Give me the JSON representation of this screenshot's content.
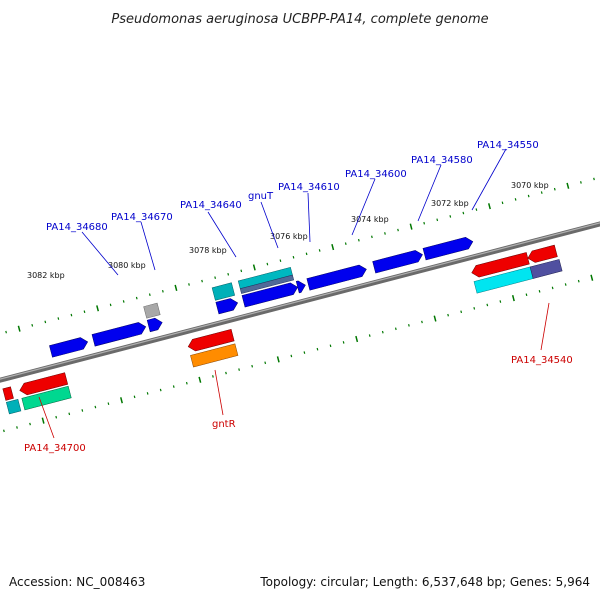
{
  "title": "Pseudomonas aeruginosa UCBPP-PA14, complete genome",
  "footer": {
    "accession": "Accession: NC_008463",
    "topology": "Topology: circular; Length: 6,537,648 bp; Genes: 5,964"
  },
  "colors": {
    "forward_gene": "#0000ee",
    "reverse_gene": "#ee0000",
    "teal_gene": "#00b0b8",
    "cyan_gene": "#00e5f0",
    "green_gene": "#00d890",
    "orange_gene": "#ff8c00",
    "gray_gene": "#a8a8a8",
    "purple_gene": "#5050a0",
    "backbone": "#808080",
    "ticks": "#007700",
    "forward_label": "#0000cc",
    "reverse_label": "#cc0000"
  },
  "tick_labels": [
    "3082 kbp",
    "3080 kbp",
    "3078 kbp",
    "3076 kbp",
    "3074 kbp",
    "3072 kbp",
    "3070 kbp"
  ],
  "gene_labels_forward": [
    "PA14_34680",
    "PA14_34670",
    "PA14_34640",
    "gnuT",
    "PA14_34610",
    "PA14_34600",
    "PA14_34580",
    "PA14_34550"
  ],
  "gene_labels_reverse": [
    "PA14_34700",
    "gntR",
    "PA14_34540"
  ]
}
